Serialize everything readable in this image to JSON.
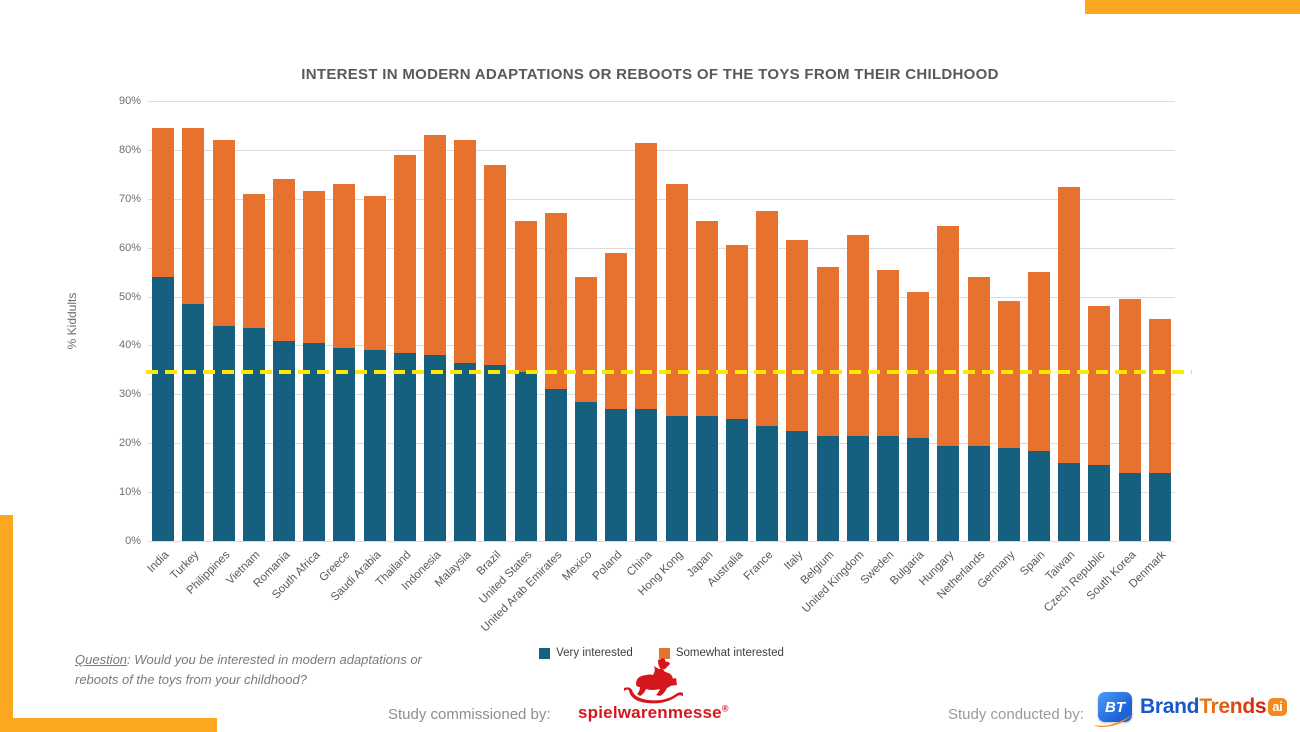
{
  "page": {
    "question_label": "Question",
    "question_rest": ": Would you be interested in modern adaptations or reboots of the toys from your childhood?"
  },
  "footer": {
    "commissioned_label": "Study commissioned by:",
    "conducted_label": "Study conducted by:",
    "spielwarenmesse_text": "spielwarenmesse",
    "spielwarenmesse_reg": "®",
    "brandtrends_icon_text": "BT",
    "brandtrends_brand": "Brand",
    "brandtrends_trends": "Trends",
    "brandtrends_ai": "ai"
  },
  "colors": {
    "very_interested": "#15607E",
    "somewhat_interested": "#E7712F",
    "accent_amber": "#FBA71F",
    "reference_yellow": "#FFE800",
    "grid": "#DCDCDC",
    "swm_red": "#D6161D",
    "bt_blue": "#1958C8"
  },
  "chart_data": {
    "type": "bar",
    "stacked": true,
    "title": "INTEREST IN MODERN ADAPTATIONS OR REBOOTS OF THE TOYS FROM THEIR CHILDHOOD",
    "xlabel": "",
    "ylabel": "% Kiddults",
    "ylim": [
      0,
      90
    ],
    "ytick_step": 10,
    "yticks": [
      "0%",
      "10%",
      "20%",
      "30%",
      "40%",
      "50%",
      "60%",
      "70%",
      "80%",
      "90%"
    ],
    "grid": true,
    "legend_position": "bottom",
    "reference_line": {
      "value": 34.5,
      "style": "dashed",
      "color": "#FFE800"
    },
    "categories": [
      "India",
      "Turkey",
      "Philippines",
      "Vietnam",
      "Romania",
      "South Africa",
      "Greece",
      "Saudi Arabia",
      "Thailand",
      "Indonesia",
      "Malaysia",
      "Brazil",
      "United States",
      "United Arab Emirates",
      "Mexico",
      "Poland",
      "China",
      "Hong Kong",
      "Japan",
      "Australia",
      "France",
      "Italy",
      "Belgium",
      "United Kingdom",
      "Sweden",
      "Bulgaria",
      "Hungary",
      "Netherlands",
      "Germany",
      "Spain",
      "Taiwan",
      "Czech Republic",
      "South Korea",
      "Denmark"
    ],
    "series": [
      {
        "name": "Very interested",
        "color": "#15607E",
        "values": [
          54,
          48.5,
          44,
          43.5,
          41,
          40.5,
          39.5,
          39,
          38.5,
          38,
          36.5,
          36,
          34.5,
          31,
          28.5,
          27,
          27,
          25.5,
          25.5,
          25,
          23.5,
          22.5,
          21.5,
          21.5,
          21.5,
          21,
          19.5,
          19.5,
          19,
          18.5,
          16,
          15.5,
          14,
          14
        ]
      },
      {
        "name": "Somewhat interested",
        "color": "#E7712F",
        "values": [
          30.5,
          36,
          38,
          27.5,
          33,
          31,
          33.5,
          31.5,
          40.5,
          45,
          45.5,
          41,
          31,
          36,
          25.5,
          32,
          54.5,
          47.5,
          40,
          35.5,
          44,
          39,
          34.5,
          41,
          34,
          30,
          45,
          34.5,
          30,
          36.5,
          56.5,
          32.5,
          35.5,
          31.5
        ]
      }
    ]
  }
}
